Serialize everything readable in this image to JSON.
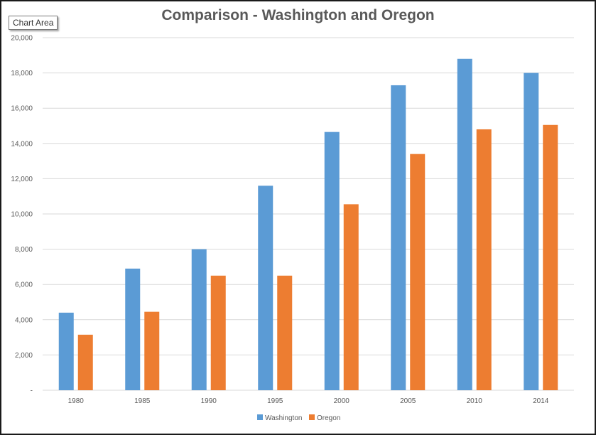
{
  "tooltip": {
    "text": "Chart Area"
  },
  "chart_data": {
    "type": "bar",
    "title": "Comparison - Washington and Oregon",
    "xlabel": "",
    "ylabel": "",
    "categories": [
      "1980",
      "1985",
      "1990",
      "1995",
      "2000",
      "2005",
      "2010",
      "2014"
    ],
    "ylim": [
      0,
      20000
    ],
    "yticks": [
      0,
      2000,
      4000,
      6000,
      8000,
      10000,
      12000,
      14000,
      16000,
      18000,
      20000
    ],
    "ytick_labels": [
      "-",
      "2,000",
      "4,000",
      "6,000",
      "8,000",
      "10,000",
      "12,000",
      "14,000",
      "16,000",
      "18,000",
      "20,000"
    ],
    "grid": true,
    "legend_position": "bottom",
    "series": [
      {
        "name": "Washington",
        "color": "#5b9bd5",
        "values": [
          4400,
          6900,
          8000,
          11600,
          14650,
          17300,
          18800,
          18000
        ]
      },
      {
        "name": "Oregon",
        "color": "#ed7d31",
        "values": [
          3150,
          4450,
          6500,
          6500,
          10550,
          13400,
          14800,
          15050
        ]
      }
    ]
  }
}
